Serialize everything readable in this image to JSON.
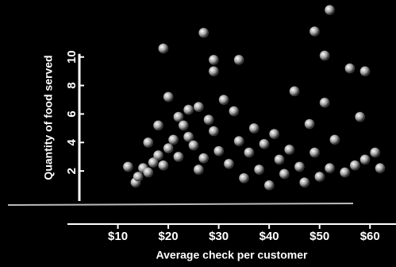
{
  "chart_data": {
    "type": "scatter",
    "x_label": "Average check per customer",
    "y_label": "Quantity of food served",
    "x": [
      52,
      49,
      27,
      19,
      29,
      34,
      29,
      59,
      56,
      51,
      13.5,
      14,
      15,
      16,
      17,
      18,
      19,
      20,
      21,
      22,
      23,
      24,
      25,
      26,
      27,
      28,
      29,
      30,
      31,
      32,
      33,
      34,
      35,
      36,
      37,
      38,
      39,
      40,
      41,
      42,
      43,
      44,
      45,
      46,
      47,
      48,
      49,
      50,
      51,
      52,
      53,
      55,
      57,
      59,
      62,
      61,
      20,
      24,
      18,
      16,
      22,
      26,
      12,
      58
    ],
    "values": [
      13.3,
      11.8,
      11.7,
      10.6,
      9.8,
      9.8,
      9,
      9,
      9.2,
      10.1,
      1.2,
      1.6,
      2.2,
      1.9,
      2.6,
      3.1,
      2.4,
      3.6,
      4.2,
      3.0,
      5.2,
      4.4,
      3.8,
      6.5,
      2.9,
      5.6,
      4.8,
      3.4,
      7.0,
      2.5,
      6.2,
      4.1,
      1.5,
      3.3,
      5.0,
      2.1,
      3.9,
      1.0,
      4.6,
      2.8,
      1.8,
      3.5,
      7.6,
      2.3,
      1.2,
      5.3,
      3.3,
      1.6,
      6.8,
      2.2,
      4.2,
      1.9,
      2.4,
      2.8,
      2.2,
      3.3,
      7.2,
      6.3,
      5.2,
      4.0,
      5.8,
      2.1,
      2.3,
      5.8
    ],
    "color": "#d8d8d8",
    "xlim": [
      0,
      65
    ],
    "ylim": [
      0,
      14
    ],
    "xticks": [
      {
        "value": 10,
        "label": "$10"
      },
      {
        "value": 20,
        "label": "$20"
      },
      {
        "value": 30,
        "label": "$30"
      },
      {
        "value": 40,
        "label": "$40"
      },
      {
        "value": 50,
        "label": "$50"
      },
      {
        "value": 60,
        "label": "$60"
      }
    ],
    "yticks": [
      2,
      4,
      6,
      8,
      10
    ]
  }
}
